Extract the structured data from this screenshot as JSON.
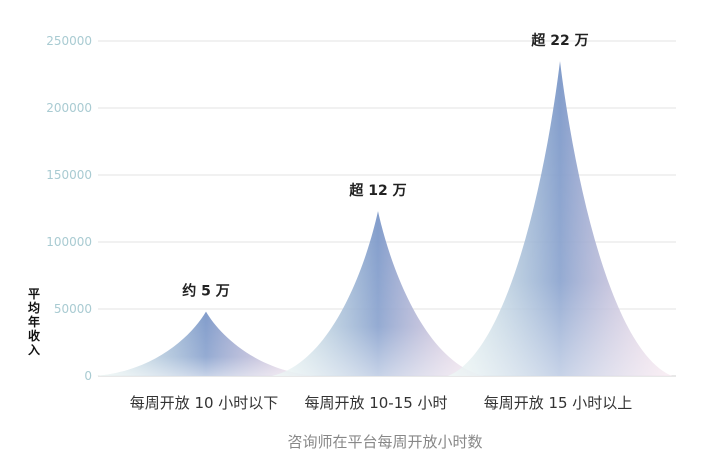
{
  "chart_data": {
    "type": "area",
    "title": "",
    "xlabel": "咨询师在平台每周开放小时数",
    "ylabel": "平均年收入",
    "ylim": [
      0,
      250000
    ],
    "yticks": [
      0,
      50000,
      100000,
      150000,
      200000,
      250000
    ],
    "grid": true,
    "categories": [
      "每周开放 10 小时以下",
      "每周开放 10-15 小时",
      "每周开放 15 小时以上"
    ],
    "values": [
      48000,
      123000,
      235000
    ],
    "data_labels": [
      "约 5 万",
      "超 12 万",
      "超 22 万"
    ],
    "colors": {
      "peak": "#7b97c8",
      "left_base": "#cfe9e2",
      "right_base": "#ecc4d8"
    }
  }
}
